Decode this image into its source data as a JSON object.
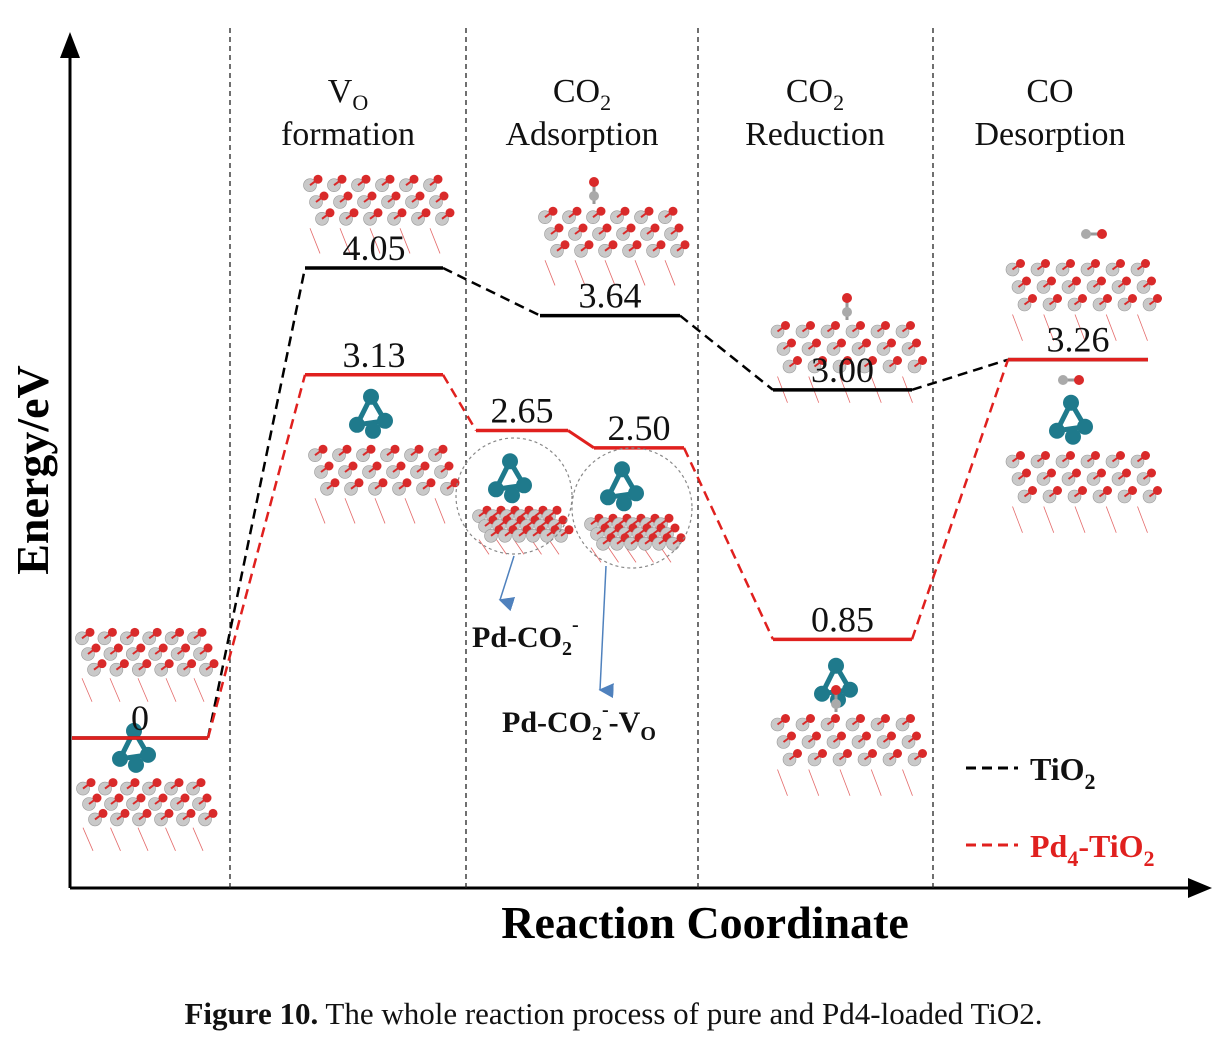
{
  "chart_data": {
    "type": "line",
    "xlabel": "Reaction Coordinate",
    "ylabel": "Energy/eV",
    "stages": [
      {
        "main": "V",
        "sub": "O",
        "line2": "formation"
      },
      {
        "main": "CO",
        "sub": "2",
        "line2": "Adsorption"
      },
      {
        "main": "CO",
        "sub": "2",
        "line2": "Reduction"
      },
      {
        "main": "CO",
        "sub": "",
        "line2": "Desorption"
      }
    ],
    "series": [
      {
        "name": "TiO2",
        "legend_main": "TiO",
        "legend_sub": "2",
        "color": "#000000",
        "points": [
          {
            "step": 0,
            "energy": 0,
            "label": "0"
          },
          {
            "step": 1,
            "energy": 4.05,
            "label": "4.05"
          },
          {
            "step": 2,
            "energy": 3.64,
            "label": "3.64"
          },
          {
            "step": 3,
            "energy": 3.0,
            "label": "3.00"
          },
          {
            "step": 4,
            "energy": 3.26,
            "label": "3.26"
          }
        ]
      },
      {
        "name": "Pd4-TiO2",
        "legend_main": "Pd",
        "legend_sub": "4",
        "legend_tail": "-TiO",
        "legend_sub2": "2",
        "color": "#e0201e",
        "points": [
          {
            "step": 0,
            "energy": 0,
            "label": ""
          },
          {
            "step": 1,
            "energy": 3.13,
            "label": "3.13"
          },
          {
            "step": 2.0,
            "energy": 2.65,
            "label": "2.65"
          },
          {
            "step": 2.5,
            "energy": 2.5,
            "label": "2.50"
          },
          {
            "step": 3,
            "energy": 0.85,
            "label": "0.85"
          },
          {
            "step": 4,
            "energy": 3.26,
            "label": ""
          }
        ]
      }
    ],
    "annotations": [
      {
        "main": "Pd-CO",
        "sub": "2",
        "sup": "-",
        "tail": ""
      },
      {
        "main": "Pd-CO",
        "sub": "2",
        "sup": "-",
        "tail": "-V",
        "tail_sub": "O"
      }
    ]
  },
  "caption": {
    "bold": "Figure 10.",
    "text": " The whole reaction process of pure and Pd4-loaded TiO2."
  }
}
